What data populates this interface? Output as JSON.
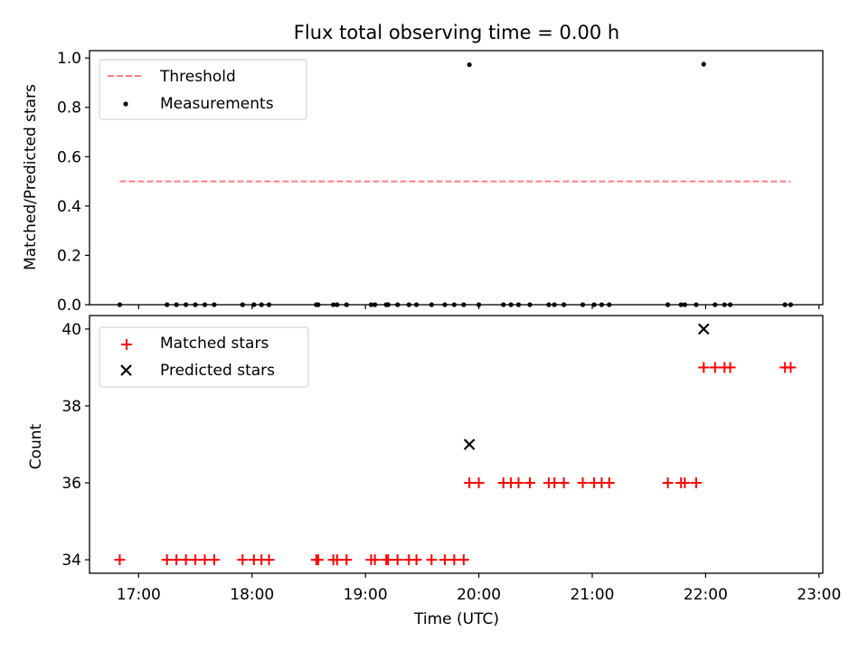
{
  "chart_data": [
    {
      "type": "scatter",
      "title": "Flux total observing time = 0.00 h",
      "xlabel": "",
      "ylabel": "Matched/Predicted stars",
      "xlim": [
        "16:34",
        "23:02"
      ],
      "ylim": [
        0,
        1.03
      ],
      "yticks": [
        "0.0",
        "0.2",
        "0.4",
        "0.6",
        "0.8",
        "1.0"
      ],
      "legend": {
        "position": "top-left",
        "entries": [
          "Threshold",
          "Measurements"
        ]
      },
      "series": [
        {
          "name": "Threshold",
          "kind": "line",
          "style": "dashed",
          "color": "#ff7f7f",
          "x": [
            "16:50",
            "22:45"
          ],
          "y": [
            0.5,
            0.5
          ]
        },
        {
          "name": "Measurements",
          "kind": "scatter",
          "marker": "dot",
          "color": "#000000",
          "x": [
            "16:50",
            "17:15",
            "17:20",
            "17:25",
            "17:30",
            "17:35",
            "17:40",
            "17:55",
            "18:01",
            "18:05",
            "18:09",
            "18:34",
            "18:35",
            "18:43",
            "18:45",
            "18:50",
            "19:03",
            "19:05",
            "19:11",
            "19:12",
            "19:17",
            "19:23",
            "19:27",
            "19:35",
            "19:42",
            "19:47",
            "19:52",
            "19:55",
            "20:00",
            "20:13",
            "20:17",
            "20:21",
            "20:27",
            "20:37",
            "20:40",
            "20:45",
            "20:55",
            "21:01",
            "21:05",
            "21:09",
            "21:40",
            "21:47",
            "21:49",
            "21:55",
            "21:59",
            "22:05",
            "22:10",
            "22:13",
            "22:42",
            "22:45"
          ],
          "y": [
            0,
            0,
            0,
            0,
            0,
            0,
            0,
            0,
            0,
            0,
            0,
            0,
            0,
            0,
            0,
            0,
            0,
            0,
            0,
            0,
            0,
            0,
            0,
            0,
            0,
            0,
            0,
            0.973,
            0,
            0,
            0,
            0,
            0,
            0,
            0,
            0,
            0,
            0,
            0,
            0,
            0,
            0,
            0,
            0,
            0.975,
            0,
            0,
            0,
            0,
            0
          ]
        }
      ]
    },
    {
      "type": "scatter",
      "title": "",
      "xlabel": "Time (UTC)",
      "ylabel": "Count",
      "xlim": [
        "16:34",
        "23:02"
      ],
      "ylim": [
        33.65,
        40.35
      ],
      "xticks": [
        "17:00",
        "18:00",
        "19:00",
        "20:00",
        "21:00",
        "22:00",
        "23:00"
      ],
      "yticks": [
        "34",
        "36",
        "38",
        "40"
      ],
      "legend": {
        "position": "top-left",
        "entries": [
          "Matched stars",
          "Predicted stars"
        ]
      },
      "series": [
        {
          "name": "Matched stars",
          "marker": "+",
          "color": "#ff0000",
          "x": [
            "16:50",
            "17:15",
            "17:20",
            "17:25",
            "17:30",
            "17:35",
            "17:40",
            "17:55",
            "18:01",
            "18:05",
            "18:09",
            "18:34",
            "18:35",
            "18:43",
            "18:45",
            "18:50",
            "19:03",
            "19:05",
            "19:11",
            "19:12",
            "19:17",
            "19:23",
            "19:27",
            "19:35",
            "19:42",
            "19:47",
            "19:52",
            "19:55",
            "20:00",
            "20:13",
            "20:17",
            "20:21",
            "20:27",
            "20:37",
            "20:40",
            "20:45",
            "20:55",
            "21:01",
            "21:05",
            "21:09",
            "21:40",
            "21:47",
            "21:49",
            "21:55",
            "21:59",
            "22:05",
            "22:10",
            "22:13",
            "22:42",
            "22:45"
          ],
          "y": [
            34,
            34,
            34,
            34,
            34,
            34,
            34,
            34,
            34,
            34,
            34,
            34,
            34,
            34,
            34,
            34,
            34,
            34,
            34,
            34,
            34,
            34,
            34,
            34,
            34,
            34,
            34,
            36,
            36,
            36,
            36,
            36,
            36,
            36,
            36,
            36,
            36,
            36,
            36,
            36,
            36,
            36,
            36,
            36,
            39,
            39,
            39,
            39,
            39,
            39
          ]
        },
        {
          "name": "Predicted stars",
          "marker": "x",
          "color": "#000000",
          "x": [
            "19:55",
            "21:59"
          ],
          "y": [
            37,
            40
          ]
        }
      ]
    }
  ]
}
